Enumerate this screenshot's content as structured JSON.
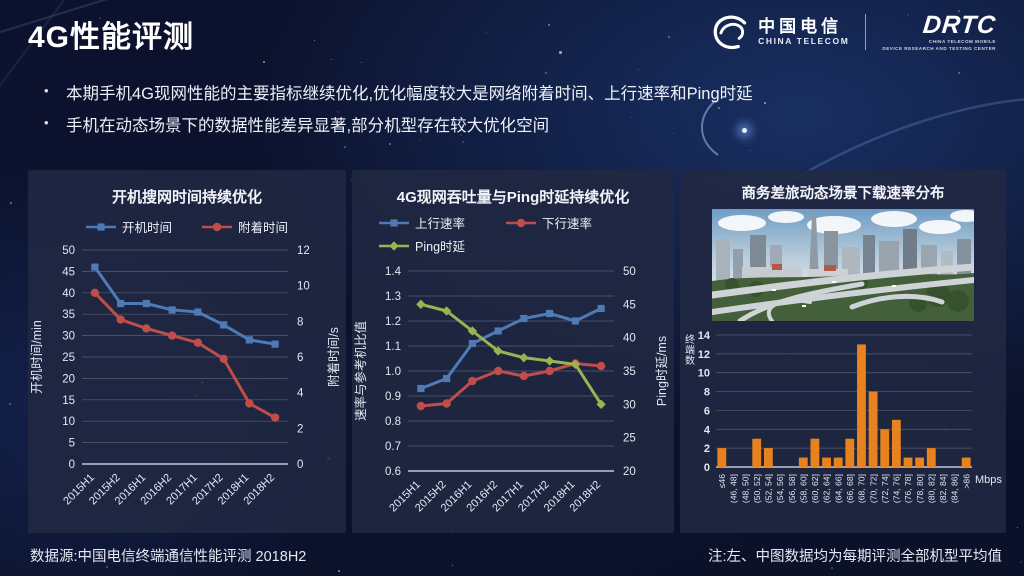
{
  "slide": {
    "title": "4G性能评测",
    "bullets": [
      "本期手机4G现网性能的主要指标继续优化,优化幅度较大是网络附着时间、上行速率和Ping时延",
      "手机在动态场景下的数据性能差异显著,部分机型存在较大优化空间"
    ],
    "footer_left": "数据源:中国电信终端通信性能评测 2018H2",
    "footer_right": "注:左、中图数据均为每期评测全部机型平均值"
  },
  "logos": {
    "china_telecom": {
      "cn": "中国电信",
      "en": "CHINA TELECOM"
    },
    "drtc": {
      "name": "DRTC",
      "line1": "CHINA TELECOM MOBILE",
      "line2": "DEVICE RESEARCH AND TESTING CENTER"
    }
  },
  "colors": {
    "blue": "#4e7ab5",
    "red": "#bf4d49",
    "green": "#9cb44f",
    "orange": "#e8821e",
    "panel": "#212844",
    "background": "#0c122c"
  },
  "chart_data": [
    {
      "type": "line",
      "title": "开机搜网时间持续优化",
      "categories": [
        "2015H1",
        "2015H2",
        "2016H1",
        "2016H2",
        "2017H1",
        "2017H2",
        "2018H1",
        "2018H2"
      ],
      "left_axis": {
        "label": "开机时间/min",
        "min": 0,
        "max": 50,
        "step": 5
      },
      "right_axis": {
        "label": "附着时间/s",
        "min": 0,
        "max": 12,
        "step": 2
      },
      "series": [
        {
          "name": "开机时间",
          "axis": "left",
          "color": "#4e7ab5",
          "marker": "square",
          "values": [
            46,
            37.5,
            37.5,
            36,
            35.5,
            32.5,
            29,
            28
          ]
        },
        {
          "name": "附着时间",
          "axis": "right",
          "color": "#bf4d49",
          "marker": "circle",
          "values": [
            9.6,
            8.1,
            7.6,
            7.2,
            6.8,
            5.9,
            3.4,
            2.6
          ]
        }
      ]
    },
    {
      "type": "line",
      "title": "4G现网吞吐量与Ping时延持续优化",
      "categories": [
        "2015H1",
        "2015H2",
        "2016H1",
        "2016H2",
        "2017H1",
        "2017H2",
        "2018H1",
        "2018H2"
      ],
      "left_axis": {
        "label": "速率与参考机比值",
        "min": 0.6,
        "max": 1.4,
        "step": 0.1
      },
      "right_axis": {
        "label": "Ping时延/ms",
        "min": 20,
        "max": 50,
        "step": 5
      },
      "series": [
        {
          "name": "上行速率",
          "axis": "left",
          "color": "#4e7ab5",
          "marker": "square",
          "values": [
            0.93,
            0.97,
            1.11,
            1.16,
            1.21,
            1.23,
            1.2,
            1.25
          ]
        },
        {
          "name": "下行速率",
          "axis": "left",
          "color": "#bf4d49",
          "marker": "circle",
          "values": [
            0.86,
            0.87,
            0.96,
            1.0,
            0.98,
            1.0,
            1.03,
            1.02
          ]
        },
        {
          "name": "Ping时延",
          "axis": "right",
          "color": "#9cb44f",
          "marker": "diamond",
          "values": [
            45,
            44,
            41,
            38,
            37,
            36.5,
            36,
            30
          ]
        }
      ]
    },
    {
      "type": "bar",
      "title": "商务差旅动态场景下载速率分布",
      "ylabel": "终端数",
      "xunit": "Mbps",
      "ylim": [
        0,
        14
      ],
      "ystep": 2,
      "bar_color": "#e8821e",
      "categories": [
        "≤46",
        "(46, 48]",
        "(48, 50]",
        "(50, 52]",
        "(52, 54]",
        "(54, 56]",
        "(56, 58]",
        "(58, 60]",
        "(60, 62]",
        "(62, 64]",
        "(64, 66]",
        "(66, 68]",
        "(68, 70]",
        "(70, 72]",
        "(72, 74]",
        "(74, 76]",
        "(76, 78]",
        "(78, 80]",
        "(80, 82]",
        "(82, 84]",
        "(84, 86]",
        ">86"
      ],
      "values": [
        2,
        0,
        0,
        3,
        2,
        0,
        0,
        1,
        3,
        1,
        1,
        3,
        13,
        8,
        4,
        5,
        1,
        1,
        2,
        0,
        0,
        1
      ]
    }
  ]
}
